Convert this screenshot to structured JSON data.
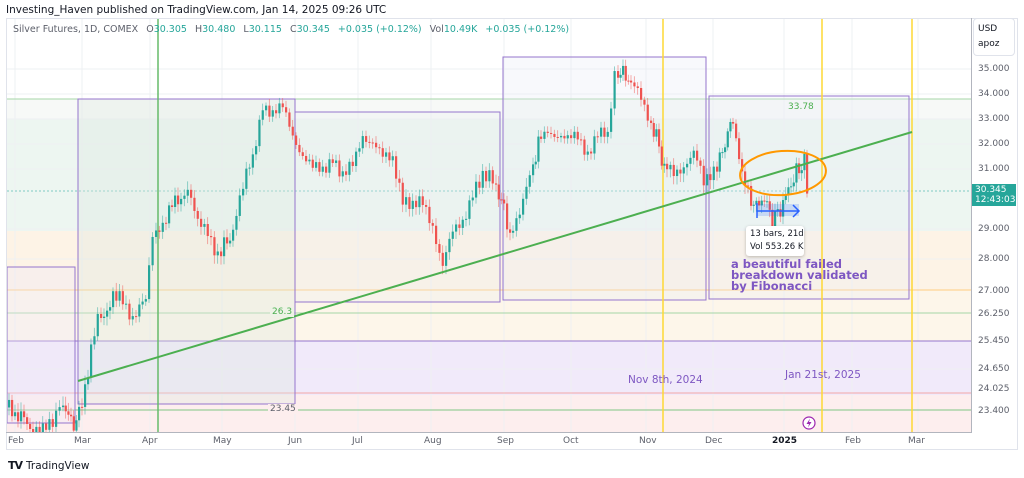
{
  "header": {
    "publish_line": "Investing_Haven published on TradingView.com, Jan 14, 2025 09:26 UTC"
  },
  "legend": {
    "symbol": "Silver Futures, 1D, COMEX",
    "open_label": "O",
    "open": "30.305",
    "high_label": "H",
    "high": "30.480",
    "low_label": "L",
    "low": "30.115",
    "close_label": "C",
    "close": "30.345",
    "change": "+0.035 (+0.12%)",
    "vol_label": "Vol",
    "vol": "10.49K",
    "vol_change": "+0.035 (+0.12%)"
  },
  "price_axis": {
    "currency": "USD",
    "unit": "apoz",
    "ticks": [
      "35.000",
      "34.000",
      "33.000",
      "32.000",
      "31.000",
      "29.000",
      "28.000",
      "27.000",
      "26.250",
      "25.450",
      "24.650",
      "24.025",
      "23.400"
    ],
    "last_price": "30.345",
    "countdown": "12:43:03"
  },
  "time_axis": {
    "labels": [
      "Feb",
      "Mar",
      "Apr",
      "May",
      "Jun",
      "Jul",
      "Aug",
      "Sep",
      "Oct",
      "Nov",
      "Dec",
      "2025",
      "Feb",
      "Mar"
    ]
  },
  "drawings": {
    "fib_high_label": "33.78",
    "fib_mid_label": "26.3",
    "fib_low_label": "23.45",
    "measure_bars": "13 bars, 21d",
    "measure_vol": "Vol 553.26 K",
    "annotation_line1": "a beautiful failed",
    "annotation_line2": "breakdown validated",
    "annotation_line3": "by Fibonacci",
    "date_note_1": "Nov 8th, 2024",
    "date_note_2": "Jan 21st, 2025"
  },
  "footer": {
    "brand": "TradingView",
    "logo": "TV"
  },
  "colors": {
    "up": "#26a69a",
    "down": "#ef5350",
    "trendline": "#4caf50",
    "box": "#9575cd",
    "vline": "#ffeb3b",
    "ellipse": "#ff9800",
    "measure": "#2962ff",
    "annotation": "#7e57c2"
  },
  "chart_data": {
    "type": "candlestick",
    "title": "Silver Futures, 1D, COMEX",
    "xlabel": "",
    "ylabel": "USD / oz",
    "x_ticks": [
      "Feb",
      "Mar",
      "Apr",
      "May",
      "Jun",
      "Jul",
      "Aug",
      "Sep",
      "Oct",
      "Nov",
      "Dec",
      "2025",
      "Feb",
      "Mar"
    ],
    "y_ticks": [
      35.0,
      34.0,
      33.0,
      32.0,
      31.0,
      29.0,
      28.0,
      27.0,
      26.25,
      25.45,
      24.65,
      24.025,
      23.4
    ],
    "ylim": [
      23.0,
      35.8
    ],
    "last": {
      "open": 30.305,
      "high": 30.48,
      "low": 30.115,
      "close": 30.345,
      "change": 0.035,
      "change_pct": 0.12,
      "volume": "10.49K"
    },
    "monthly_approx_closes": [
      {
        "month": "Feb 2024",
        "close": 22.9
      },
      {
        "month": "Mar 2024",
        "close": 25.0
      },
      {
        "month": "Apr 2024",
        "close": 26.5
      },
      {
        "month": "May 2024",
        "close": 30.5
      },
      {
        "month": "Jun 2024",
        "close": 29.3
      },
      {
        "month": "Jul 2024",
        "close": 29.0
      },
      {
        "month": "Aug 2024",
        "close": 28.8
      },
      {
        "month": "Sep 2024",
        "close": 31.5
      },
      {
        "month": "Oct 2024",
        "close": 32.8
      },
      {
        "month": "Nov 2024",
        "close": 30.7
      },
      {
        "month": "Dec 2024",
        "close": 29.4
      },
      {
        "month": "Jan 2025 (partial)",
        "close": 30.345
      }
    ],
    "key_levels": {
      "peak_oct_2024": 35.2,
      "peak_may_2024": 34.0,
      "low_aug_2024": 27.4,
      "low_feb_2024": 22.5
    },
    "fibonacci_levels": [
      33.78,
      26.3,
      23.45
    ],
    "horizontal_levels": [
      33.78,
      29.0,
      27.0,
      26.3,
      25.45,
      24.025,
      23.45
    ],
    "trendline": {
      "from": {
        "date": "Feb 29, 2024",
        "price": 22.9
      },
      "to": {
        "date": "Feb 28, 2025",
        "price": 32.7
      }
    },
    "vertical_lines": [
      {
        "date": "Apr 5, 2024",
        "color": "green"
      },
      {
        "date": "Nov 8, 2024",
        "color": "yellow"
      },
      {
        "date": "Jan 21, 2025",
        "color": "yellow"
      },
      {
        "date": "Feb 27, 2025",
        "color": "yellow"
      }
    ],
    "annotations": [
      "a beautiful failed breakdown validated by Fibonacci",
      "Nov 8th, 2024",
      "Jan 21st, 2025",
      "13 bars, 21d — Vol 553.26 K",
      "33.78",
      "26.3",
      "23.45"
    ]
  }
}
